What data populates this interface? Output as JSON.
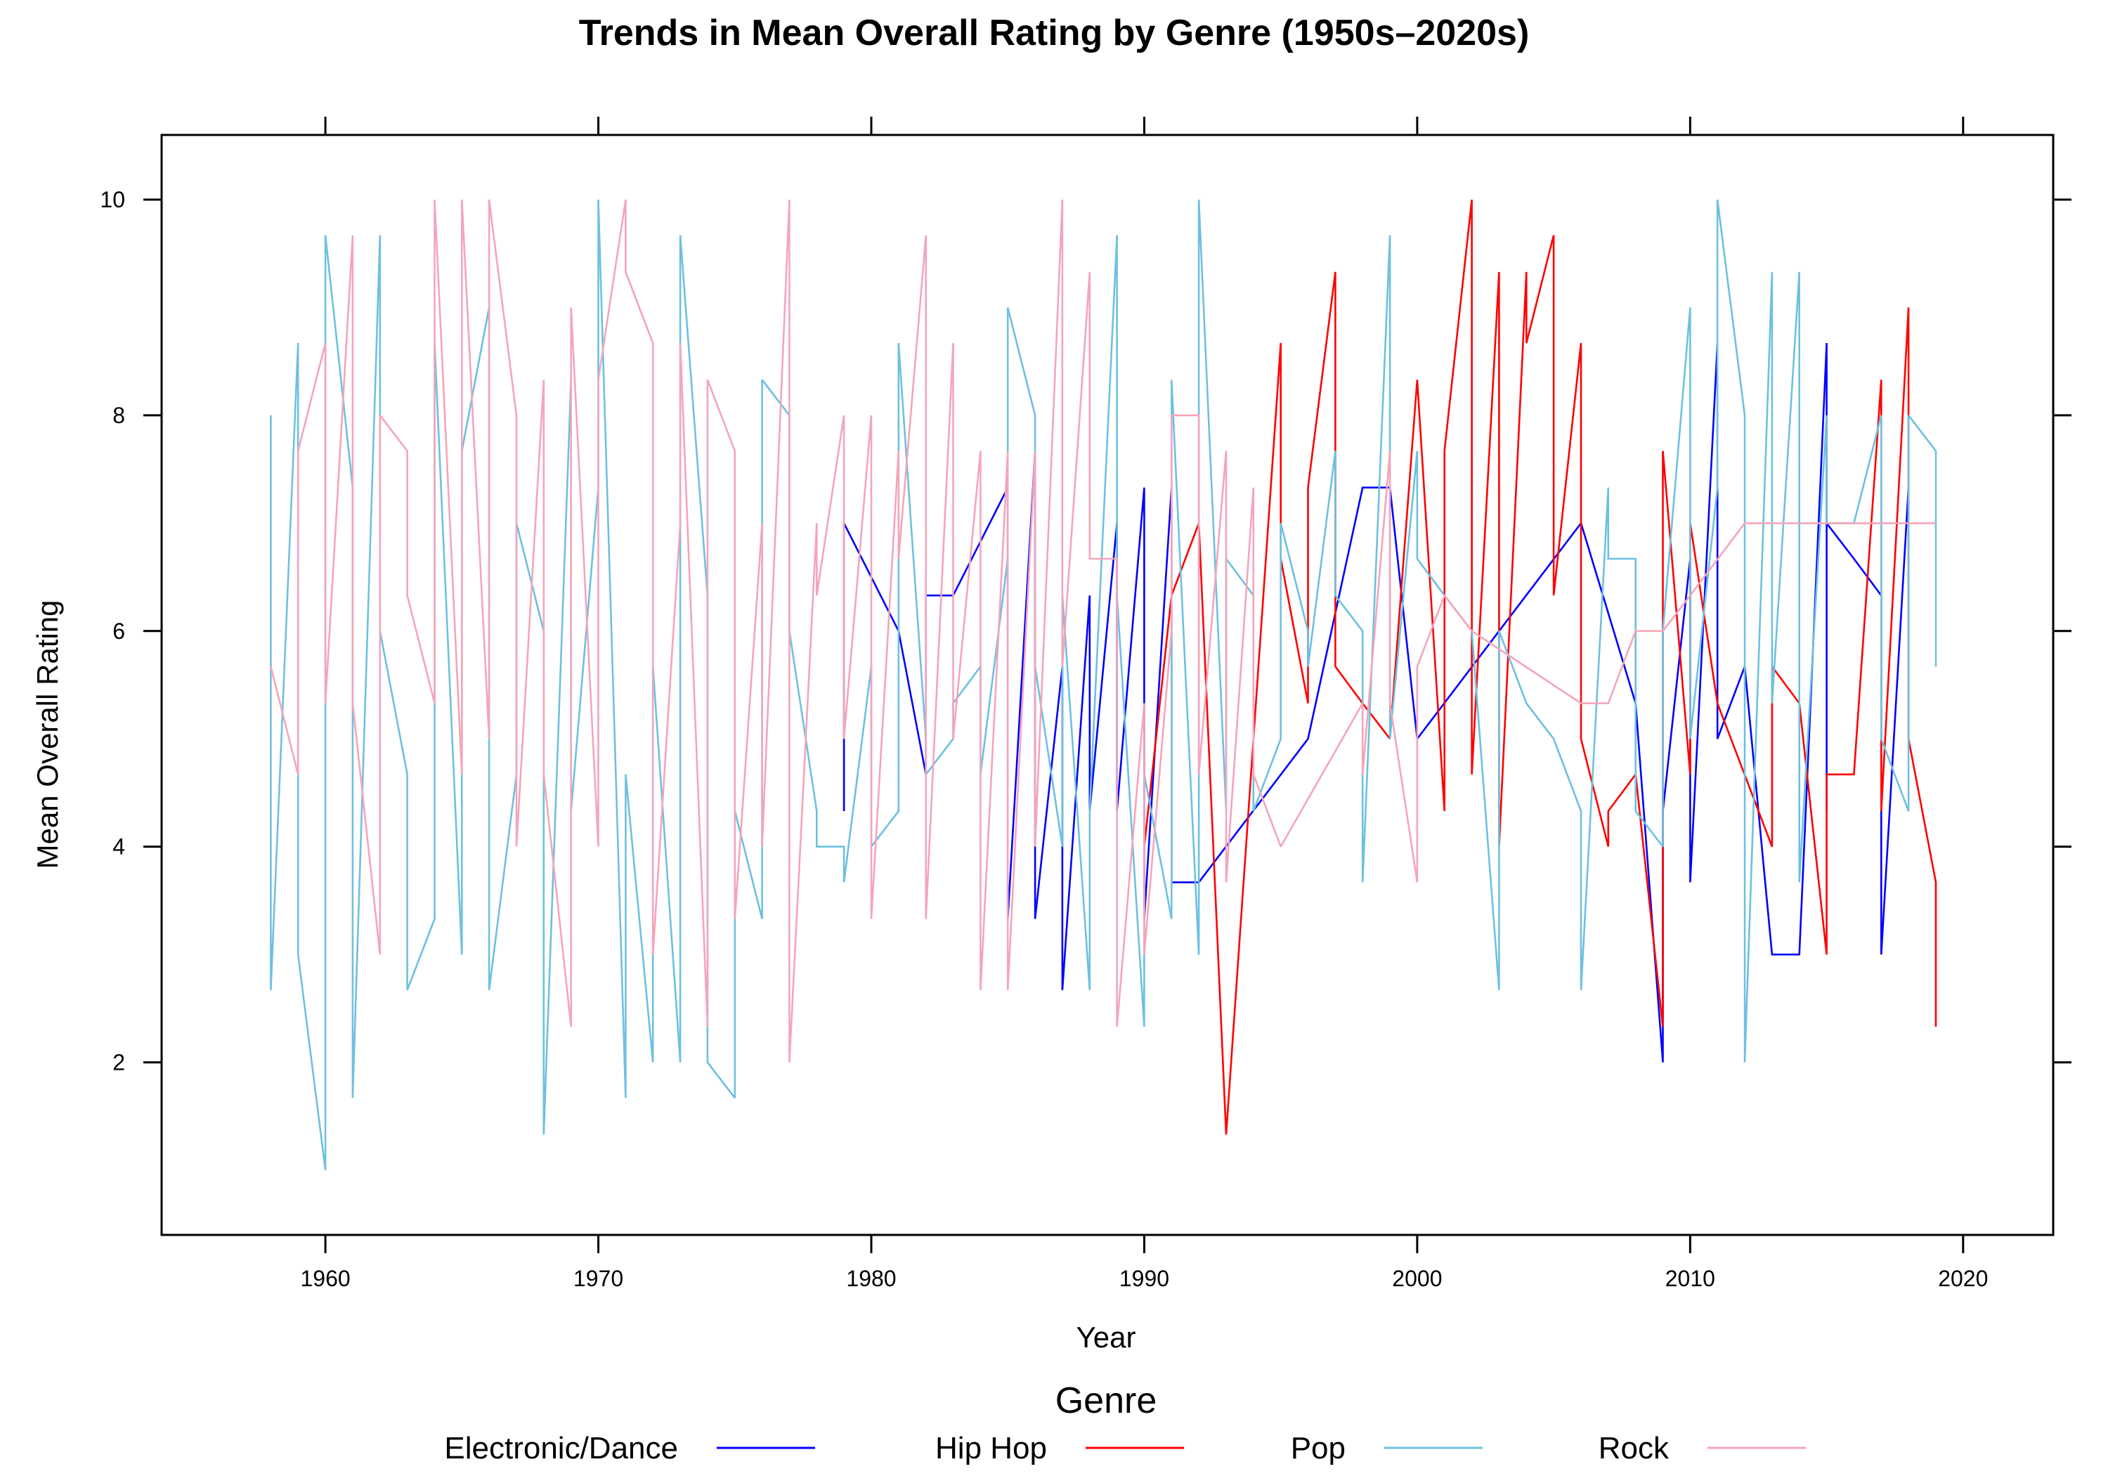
{
  "chart_data": {
    "type": "line",
    "title": "Trends in Mean Overall Rating by Genre (1950s–2020s)",
    "xlabel": "Year",
    "ylabel": "Mean Overall Rating",
    "xlim": [
      1954,
      2023.3
    ],
    "ylim": [
      0.4,
      10.6
    ],
    "xticks": [
      1960,
      1970,
      1980,
      1990,
      2000,
      2010,
      2020
    ],
    "yticks": [
      2,
      4,
      6,
      8,
      10
    ],
    "grid": false,
    "legend": {
      "title": "Genre",
      "position": "bottom",
      "entries": [
        "Electronic/Dance",
        "Hip Hop",
        "Pop",
        "Rock"
      ]
    },
    "series": [
      {
        "name": "Electronic/Dance",
        "color": "#0000ff",
        "x": [
          1979,
          1979,
          1981,
          1982,
          1982,
          1983,
          1985,
          1985,
          1986,
          1986,
          1987,
          1987,
          1988,
          1988,
          1989,
          1989,
          1990,
          1990,
          1991,
          1991,
          1992,
          1996,
          1998,
          1999,
          2000,
          2006,
          2008,
          2009,
          2009,
          2010,
          2010,
          2011,
          2011,
          2012,
          2013,
          2014,
          2015,
          2015,
          2015,
          2016,
          2017,
          2017,
          2018
        ],
        "y": [
          4.33,
          7.0,
          6.0,
          4.67,
          6.33,
          6.33,
          7.33,
          3.33,
          7.67,
          3.33,
          5.67,
          2.67,
          6.33,
          4.33,
          7.0,
          4.33,
          7.33,
          3.33,
          7.33,
          3.67,
          3.67,
          5.0,
          7.33,
          7.33,
          5.0,
          7.0,
          5.33,
          2.0,
          4.33,
          6.67,
          3.67,
          8.67,
          5.0,
          5.67,
          3.0,
          3.0,
          8.67,
          4.33,
          7.0,
          6.67,
          6.33,
          3.0,
          7.33
        ]
      },
      {
        "name": "Hip Hop",
        "color": "#ff0000",
        "x": [
          1990,
          1990,
          1991,
          1992,
          1993,
          1995,
          1995,
          1996,
          1996,
          1997,
          1997,
          1998,
          1999,
          2000,
          2001,
          2001,
          2002,
          2002,
          2003,
          2003,
          2004,
          2004,
          2005,
          2005,
          2006,
          2006,
          2007,
          2007,
          2008,
          2009,
          2009,
          2010,
          2010,
          2011,
          2013,
          2013,
          2014,
          2015,
          2015,
          2016,
          2017,
          2017,
          2018,
          2018,
          2019,
          2019
        ],
        "y": [
          3.33,
          4.0,
          6.33,
          7.0,
          1.33,
          8.67,
          6.67,
          5.33,
          7.33,
          9.33,
          5.67,
          5.33,
          5.0,
          8.33,
          4.33,
          7.67,
          10.0,
          4.67,
          9.33,
          4.0,
          9.33,
          8.67,
          9.67,
          6.33,
          8.67,
          5.0,
          4.0,
          4.33,
          4.67,
          2.33,
          7.67,
          4.67,
          7.0,
          5.33,
          4.0,
          5.67,
          5.33,
          3.0,
          4.67,
          4.67,
          8.33,
          4.33,
          9.0,
          5.0,
          3.67,
          2.33
        ]
      },
      {
        "name": "Pop",
        "color": "#6ec0e0",
        "x": [
          1958,
          1958,
          1959,
          1959,
          1960,
          1960,
          1961,
          1961,
          1962,
          1962,
          1963,
          1963,
          1964,
          1964,
          1965,
          1965,
          1966,
          1966,
          1967,
          1967,
          1968,
          1968,
          1969,
          1969,
          1970,
          1970,
          1971,
          1971,
          1972,
          1972,
          1973,
          1973,
          1974,
          1974,
          1975,
          1975,
          1976,
          1976,
          1977,
          1977,
          1978,
          1978,
          1979,
          1979,
          1980,
          1980,
          1981,
          1981,
          1982,
          1982,
          1983,
          1983,
          1984,
          1984,
          1985,
          1985,
          1986,
          1986,
          1987,
          1987,
          1988,
          1988,
          1989,
          1989,
          1990,
          1990,
          1991,
          1991,
          1992,
          1992,
          1993,
          1993,
          1994,
          1994,
          1995,
          1995,
          1996,
          1996,
          1997,
          1997,
          1998,
          1998,
          1999,
          1999,
          2000,
          2000,
          2001,
          2001,
          2002,
          2003,
          2003,
          2004,
          2004,
          2005,
          2006,
          2006,
          2007,
          2007,
          2008,
          2008,
          2009,
          2009,
          2010,
          2010,
          2011,
          2011,
          2012,
          2012,
          2013,
          2013,
          2014,
          2014,
          2015,
          2015,
          2016,
          2017,
          2017,
          2018,
          2018,
          2019,
          2019
        ],
        "y": [
          8.0,
          2.67,
          8.67,
          3.0,
          1.0,
          9.67,
          7.33,
          1.67,
          9.67,
          6.0,
          4.67,
          2.67,
          3.33,
          8.67,
          3.0,
          7.67,
          9.0,
          2.67,
          4.67,
          7.0,
          6.0,
          1.33,
          8.33,
          4.33,
          7.33,
          10.0,
          1.67,
          4.67,
          2.0,
          5.67,
          2.0,
          9.67,
          6.33,
          2.0,
          1.67,
          4.33,
          3.33,
          8.33,
          8.0,
          6.0,
          4.33,
          4.0,
          4.0,
          3.67,
          5.67,
          4.0,
          4.33,
          8.67,
          5.0,
          4.67,
          5.0,
          5.33,
          5.67,
          4.67,
          6.67,
          9.0,
          8.0,
          5.67,
          4.0,
          6.33,
          2.67,
          4.33,
          9.67,
          6.33,
          2.33,
          4.67,
          3.33,
          8.33,
          3.0,
          10.0,
          4.33,
          6.67,
          6.33,
          4.33,
          5.0,
          7.0,
          6.0,
          5.67,
          7.67,
          6.33,
          6.0,
          3.67,
          9.67,
          5.0,
          7.67,
          6.67,
          6.33,
          6.33,
          6.0,
          2.67,
          6.0,
          5.33,
          5.33,
          5.0,
          4.33,
          2.67,
          7.33,
          6.67,
          6.67,
          4.33,
          4.0,
          6.0,
          9.0,
          5.0,
          7.33,
          10.0,
          8.0,
          2.0,
          9.33,
          5.33,
          9.33,
          3.67,
          8.0,
          7.0,
          7.0,
          8.0,
          5.0,
          4.33,
          8.0,
          7.67,
          5.67
        ]
      },
      {
        "name": "Rock",
        "color": "#f4a5bb",
        "x": [
          1958,
          1959,
          1959,
          1960,
          1960,
          1961,
          1961,
          1962,
          1962,
          1963,
          1963,
          1964,
          1964,
          1965,
          1965,
          1966,
          1966,
          1967,
          1967,
          1968,
          1968,
          1969,
          1969,
          1970,
          1970,
          1971,
          1971,
          1972,
          1972,
          1973,
          1973,
          1974,
          1974,
          1975,
          1975,
          1976,
          1976,
          1977,
          1977,
          1978,
          1978,
          1979,
          1979,
          1980,
          1980,
          1981,
          1981,
          1982,
          1982,
          1983,
          1983,
          1984,
          1984,
          1985,
          1985,
          1986,
          1986,
          1987,
          1987,
          1988,
          1988,
          1989,
          1989,
          1990,
          1990,
          1991,
          1991,
          1992,
          1992,
          1993,
          1993,
          1994,
          1994,
          1995,
          1998,
          1998,
          1999,
          1999,
          2000,
          2000,
          2001,
          2002,
          2006,
          2007,
          2008,
          2009,
          2010,
          2012,
          2019
        ],
        "y": [
          5.67,
          4.67,
          7.67,
          8.67,
          5.33,
          9.67,
          5.33,
          3.0,
          8.0,
          7.67,
          6.33,
          5.33,
          10.0,
          4.67,
          10.0,
          5.0,
          10.0,
          8.0,
          4.0,
          8.33,
          4.67,
          2.33,
          9.0,
          4.0,
          8.33,
          10.0,
          9.33,
          8.67,
          3.0,
          7.0,
          8.67,
          2.33,
          8.33,
          7.67,
          3.33,
          7.0,
          4.0,
          10.0,
          2.0,
          7.0,
          6.33,
          8.0,
          5.0,
          8.0,
          3.33,
          7.67,
          6.67,
          9.67,
          3.33,
          8.67,
          5.0,
          7.67,
          2.67,
          7.67,
          2.67,
          7.67,
          4.0,
          10.0,
          5.67,
          9.33,
          6.67,
          6.67,
          2.33,
          5.33,
          3.0,
          6.0,
          8.0,
          8.0,
          4.67,
          7.67,
          3.67,
          7.33,
          4.67,
          4.0,
          5.33,
          4.67,
          7.67,
          5.33,
          3.67,
          5.67,
          6.33,
          6.0,
          5.33,
          5.33,
          6.0,
          6.0,
          6.33,
          7.0,
          7.0
        ]
      }
    ]
  }
}
